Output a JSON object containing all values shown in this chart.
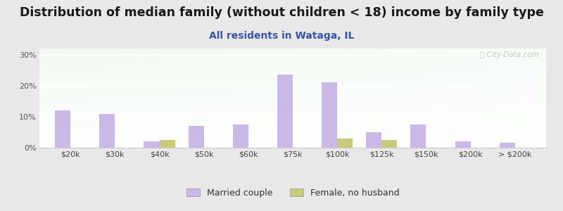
{
  "categories": [
    "$20k",
    "$30k",
    "$40k",
    "$50k",
    "$60k",
    "$75k",
    "$100k",
    "$125k",
    "$150k",
    "$200k",
    "> $200k"
  ],
  "married_couple": [
    12.0,
    11.0,
    2.0,
    7.0,
    7.5,
    23.5,
    21.0,
    5.0,
    7.5,
    2.0,
    1.5
  ],
  "female_no_husband": [
    0.0,
    0.0,
    2.5,
    0.0,
    0.0,
    0.0,
    3.0,
    2.5,
    0.0,
    0.0,
    0.0
  ],
  "married_color": "#c9b8e8",
  "female_color": "#c8cc7a",
  "title": "Distribution of median family (without children < 18) income by family type",
  "subtitle": "All residents in Wataga, IL",
  "title_color": "#1a1a1a",
  "subtitle_color": "#3355aa",
  "ylabel_ticks": [
    "0%",
    "10%",
    "20%",
    "30%"
  ],
  "yticks": [
    0,
    10,
    20,
    30
  ],
  "ylim": [
    0,
    32
  ],
  "fig_facecolor": "#e8e8e8",
  "watermark": "City-Data.com",
  "legend_married": "Married couple",
  "legend_female": "Female, no husband",
  "bar_width": 0.35,
  "title_fontsize": 12.5,
  "subtitle_fontsize": 10
}
